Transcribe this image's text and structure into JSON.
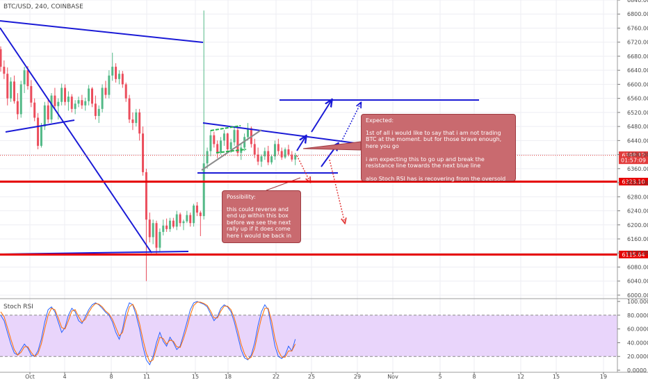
{
  "header": {
    "symbol_line": "BTC/USD, 240, COINBASE"
  },
  "chart_data": [
    {
      "type": "candlestick",
      "title": "BTC/USD, 240, COINBASE",
      "ylim": [
        5990,
        6840
      ],
      "x_tick_labels": [
        "Oct",
        "4",
        "8",
        "11",
        "15",
        "18",
        "22",
        "25",
        "29",
        "Nov",
        "5",
        "8",
        "12",
        "15",
        "19"
      ],
      "y_tick_labels": [
        "6000.00",
        "6040.00",
        "6080.00",
        "6120.00",
        "6160.00",
        "6200.00",
        "6240.00",
        "6280.00",
        "6320.00",
        "6360.00",
        "6400.00",
        "6440.00",
        "6480.00",
        "6520.00",
        "6560.00",
        "6600.00",
        "6640.00",
        "6680.00",
        "6720.00",
        "6760.00",
        "6800.00",
        "6840.00"
      ],
      "price_labels": [
        {
          "label": "6398.12",
          "value": 6398.12,
          "color": "#e23b3b"
        },
        {
          "label": "01:57:09",
          "value": 6384,
          "color": "#e23b3b"
        },
        {
          "label": "6323.10",
          "value": 6323.1,
          "color": "#e60000"
        },
        {
          "label": "6115.64",
          "value": 6115.64,
          "color": "#e60000"
        }
      ],
      "candles_ohlc": [
        [
          6700,
          6708,
          6636,
          6650
        ],
        [
          6650,
          6668,
          6615,
          6630
        ],
        [
          6630,
          6648,
          6540,
          6560
        ],
        [
          6560,
          6620,
          6550,
          6608
        ],
        [
          6608,
          6625,
          6545,
          6552
        ],
        [
          6552,
          6575,
          6500,
          6515
        ],
        [
          6515,
          6610,
          6505,
          6600
        ],
        [
          6600,
          6650,
          6575,
          6640
        ],
        [
          6640,
          6652,
          6585,
          6595
        ],
        [
          6595,
          6612,
          6535,
          6548
        ],
        [
          6548,
          6560,
          6495,
          6505
        ],
        [
          6505,
          6518,
          6415,
          6425
        ],
        [
          6425,
          6490,
          6420,
          6480
        ],
        [
          6480,
          6550,
          6470,
          6540
        ],
        [
          6540,
          6560,
          6490,
          6500
        ],
        [
          6500,
          6575,
          6490,
          6568
        ],
        [
          6568,
          6590,
          6530,
          6538
        ],
        [
          6538,
          6560,
          6500,
          6550
        ],
        [
          6550,
          6602,
          6540,
          6590
        ],
        [
          6590,
          6600,
          6540,
          6550
        ],
        [
          6550,
          6580,
          6525,
          6565
        ],
        [
          6565,
          6572,
          6520,
          6530
        ],
        [
          6530,
          6555,
          6515,
          6545
        ],
        [
          6545,
          6565,
          6535,
          6555
        ],
        [
          6555,
          6570,
          6530,
          6540
        ],
        [
          6540,
          6562,
          6525,
          6552
        ],
        [
          6552,
          6598,
          6540,
          6588
        ],
        [
          6588,
          6592,
          6535,
          6545
        ],
        [
          6545,
          6568,
          6500,
          6510
        ],
        [
          6510,
          6540,
          6490,
          6530
        ],
        [
          6530,
          6600,
          6520,
          6590
        ],
        [
          6590,
          6610,
          6560,
          6570
        ],
        [
          6570,
          6640,
          6560,
          6625
        ],
        [
          6625,
          6690,
          6610,
          6650
        ],
        [
          6650,
          6660,
          6605,
          6615
        ],
        [
          6615,
          6640,
          6600,
          6630
        ],
        [
          6630,
          6638,
          6590,
          6600
        ],
        [
          6600,
          6605,
          6550,
          6560
        ],
        [
          6560,
          6570,
          6490,
          6500
        ],
        [
          6500,
          6520,
          6470,
          6490
        ],
        [
          6490,
          6530,
          6480,
          6520
        ],
        [
          6520,
          6530,
          6440,
          6460
        ],
        [
          6460,
          6480,
          6340,
          6350
        ],
        [
          6350,
          6360,
          6040,
          6215
        ],
        [
          6215,
          6235,
          6150,
          6165
        ],
        [
          6165,
          6215,
          6145,
          6205
        ],
        [
          6205,
          6212,
          6118,
          6135
        ],
        [
          6135,
          6190,
          6125,
          6180
        ],
        [
          6180,
          6215,
          6170,
          6198
        ],
        [
          6198,
          6218,
          6180,
          6188
        ],
        [
          6188,
          6220,
          6180,
          6212
        ],
        [
          6212,
          6220,
          6190,
          6195
        ],
        [
          6195,
          6240,
          6185,
          6230
        ],
        [
          6230,
          6235,
          6195,
          6205
        ],
        [
          6205,
          6215,
          6185,
          6210
        ],
        [
          6210,
          6240,
          6205,
          6228
        ],
        [
          6228,
          6235,
          6195,
          6205
        ],
        [
          6205,
          6260,
          6195,
          6255
        ],
        [
          6255,
          6265,
          6225,
          6235
        ],
        [
          6235,
          6240,
          6168,
          6225
        ],
        [
          6225,
          6810,
          6215,
          6375
        ],
        [
          6375,
          6420,
          6360,
          6410
        ],
        [
          6410,
          6470,
          6395,
          6455
        ],
        [
          6455,
          6465,
          6420,
          6430
        ],
        [
          6430,
          6440,
          6390,
          6405
        ],
        [
          6405,
          6450,
          6400,
          6440
        ],
        [
          6440,
          6470,
          6425,
          6460
        ],
        [
          6460,
          6462,
          6405,
          6415
        ],
        [
          6415,
          6445,
          6405,
          6435
        ],
        [
          6435,
          6480,
          6425,
          6470
        ],
        [
          6470,
          6475,
          6395,
          6405
        ],
        [
          6405,
          6430,
          6385,
          6420
        ],
        [
          6420,
          6460,
          6410,
          6450
        ],
        [
          6450,
          6490,
          6440,
          6475
        ],
        [
          6475,
          6480,
          6420,
          6430
        ],
        [
          6430,
          6445,
          6390,
          6400
        ],
        [
          6400,
          6420,
          6370,
          6380
        ],
        [
          6380,
          6400,
          6365,
          6395
        ],
        [
          6395,
          6420,
          6385,
          6410
        ],
        [
          6410,
          6425,
          6370,
          6378
        ],
        [
          6378,
          6400,
          6372,
          6395
        ],
        [
          6395,
          6440,
          6385,
          6430
        ],
        [
          6430,
          6445,
          6400,
          6410
        ],
        [
          6410,
          6420,
          6385,
          6392
        ],
        [
          6392,
          6420,
          6388,
          6415
        ],
        [
          6415,
          6428,
          6395,
          6400
        ],
        [
          6400,
          6410,
          6380,
          6386
        ],
        [
          6386,
          6405,
          6370,
          6398
        ]
      ],
      "annotations": [
        {
          "label": "Expected:",
          "text": "1st of all i would like to say that i am not trading BTC at the moment. but for those brave enough, here you go\n\ni am expecting this to go up and break the resistance line towards the next blue line\n\nalso Stoch RSI has is recovering from the oversold area so some buys seems to be coming in"
        },
        {
          "label": "Possibility:",
          "text": "this could reverse and end up within this box before we see the next rally up if it does come here i would be back in"
        }
      ],
      "horizontal_levels": [
        6323.1,
        6115.64
      ]
    },
    {
      "type": "line",
      "title": "Stoch RSI",
      "ylim": [
        0,
        100
      ],
      "overbought": 80,
      "oversold": 20,
      "y_tick_labels": [
        "0.0000",
        "20.0000",
        "40.0000",
        "60.0000",
        "80.0000",
        "100.0000"
      ],
      "series": [
        {
          "color": "#2962ff",
          "values": [
            80,
            72,
            55,
            38,
            25,
            22,
            30,
            38,
            32,
            22,
            20,
            28,
            45,
            70,
            88,
            92,
            85,
            70,
            55,
            62,
            80,
            90,
            85,
            72,
            68,
            78,
            88,
            95,
            98,
            95,
            90,
            84,
            80,
            70,
            55,
            45,
            60,
            85,
            98,
            95,
            80,
            60,
            35,
            15,
            8,
            20,
            40,
            55,
            42,
            35,
            48,
            40,
            30,
            35,
            52,
            70,
            88,
            98,
            100,
            98,
            96,
            92,
            82,
            72,
            78,
            90,
            95,
            92,
            85,
            70,
            50,
            30,
            18,
            15,
            22,
            40,
            65,
            85,
            95,
            88,
            62,
            35,
            20,
            17,
            22,
            35,
            28,
            45
          ]
        },
        {
          "color": "#ff6d00",
          "values": [
            85,
            78,
            62,
            45,
            30,
            22,
            26,
            34,
            34,
            26,
            20,
            24,
            38,
            60,
            80,
            90,
            88,
            76,
            62,
            60,
            72,
            86,
            88,
            78,
            70,
            74,
            84,
            92,
            97,
            96,
            92,
            86,
            82,
            74,
            62,
            50,
            55,
            75,
            92,
            96,
            86,
            68,
            45,
            25,
            12,
            15,
            32,
            48,
            46,
            38,
            44,
            42,
            34,
            33,
            46,
            62,
            80,
            94,
            99,
            99,
            97,
            94,
            86,
            76,
            76,
            86,
            93,
            93,
            88,
            76,
            58,
            38,
            24,
            16,
            19,
            32,
            55,
            76,
            90,
            90,
            72,
            46,
            28,
            19,
            19,
            28,
            28,
            38
          ]
        }
      ]
    }
  ]
}
